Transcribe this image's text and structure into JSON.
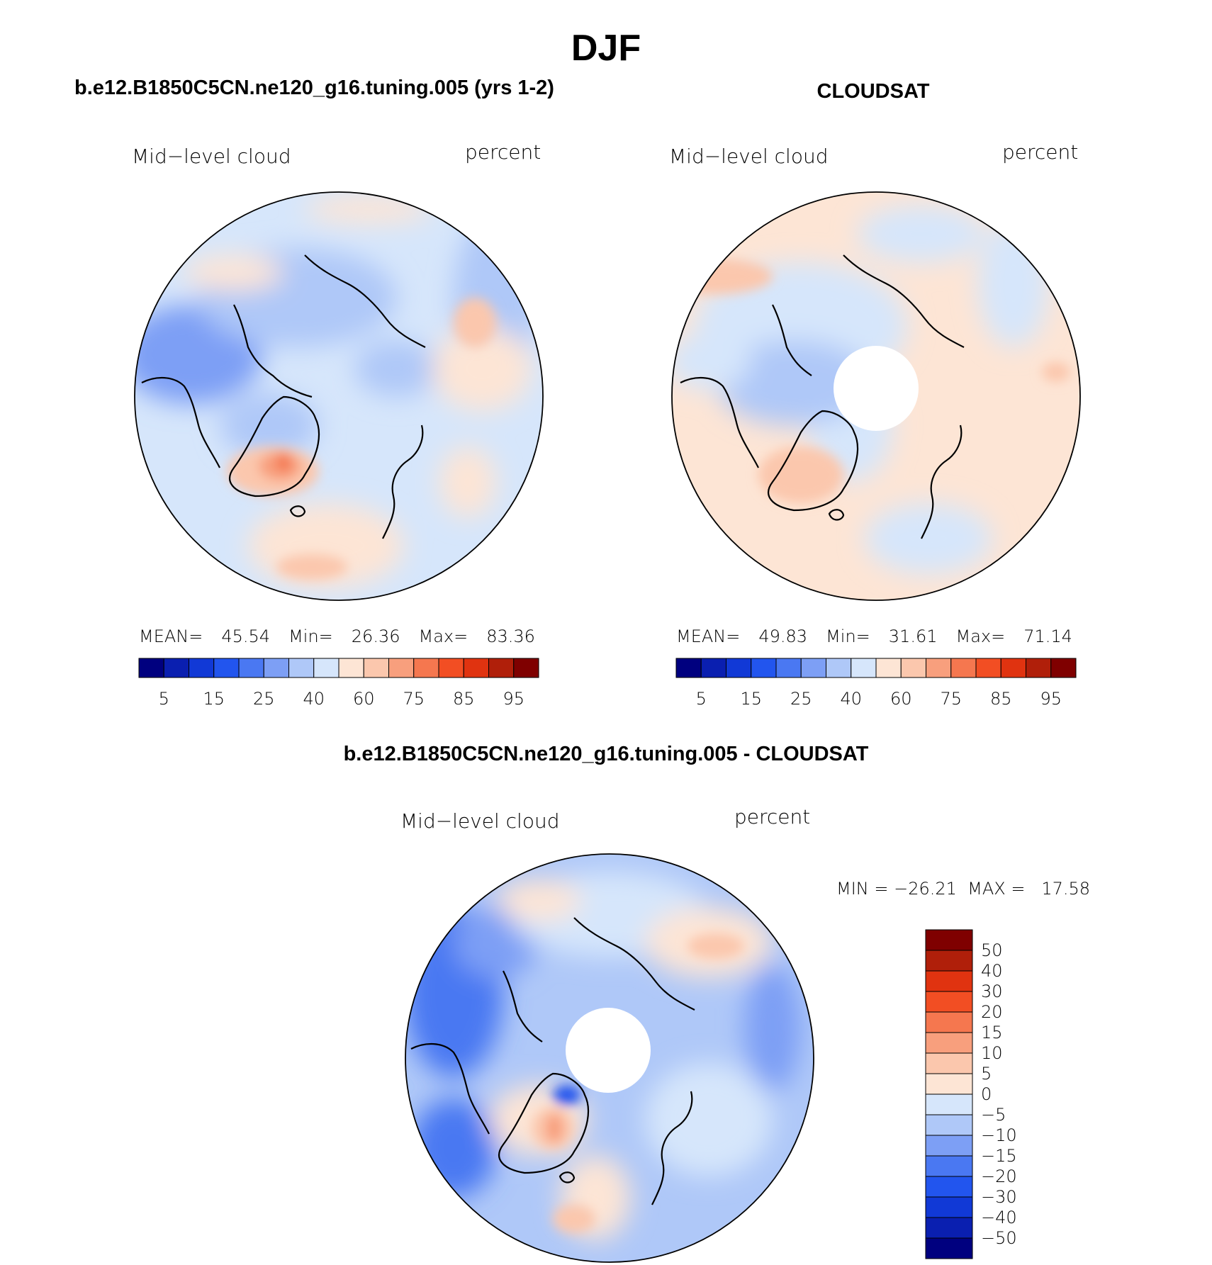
{
  "page": {
    "season": "DJF"
  },
  "panels": {
    "model": {
      "title": "b.e12.B1850C5CN.ne120_g16.tuning.005 (yrs 1-2)",
      "variable": "Mid−level cloud",
      "units": "percent",
      "stats": {
        "mean_label": "MEAN=",
        "mean": "45.54",
        "min_label": "Min=",
        "min": "26.36",
        "max_label": "Max=",
        "max": "83.36"
      }
    },
    "obs": {
      "title": "CLOUDSAT",
      "variable": "Mid−level cloud",
      "units": "percent",
      "stats": {
        "mean_label": "MEAN=",
        "mean": "49.83",
        "min_label": "Min=",
        "min": "31.61",
        "max_label": "Max=",
        "max": "71.14"
      }
    },
    "diff": {
      "title": "b.e12.B1850C5CN.ne120_g16.tuning.005 - CLOUDSAT",
      "variable": "Mid−level cloud",
      "units": "percent",
      "stats_text": "MIN = −26.21  MAX =   17.58"
    }
  },
  "colors": {
    "abs_scale": [
      "#00007f",
      "#0a1fb0",
      "#1139d6",
      "#2255ee",
      "#4a78f2",
      "#7d9ff5",
      "#afc8f8",
      "#d6e6fb",
      "#fde5d5",
      "#fbc7ad",
      "#f89f7d",
      "#f5774f",
      "#f24e23",
      "#e03310",
      "#b01f0a",
      "#7f0000"
    ],
    "diff_scale": [
      "#00007f",
      "#0a1fb0",
      "#1139d6",
      "#2255ee",
      "#4a78f2",
      "#7d9ff5",
      "#afc8f8",
      "#d6e6fb",
      "#fde5d5",
      "#fbc7ad",
      "#f89f7d",
      "#f5774f",
      "#f24e23",
      "#e03310",
      "#b01f0a",
      "#7f0000"
    ]
  },
  "chart_data": [
    {
      "type": "heatmap",
      "projection": "north-polar-stereographic",
      "title": "b.e12.B1850C5CN.ne120_g16.tuning.005 (yrs 1-2)",
      "variable": "Mid−level cloud",
      "units": "percent",
      "mean": 45.54,
      "min": 26.36,
      "max": 83.36,
      "colorbar_ticks": [
        "5",
        "15",
        "25",
        "40",
        "60",
        "75",
        "85",
        "95"
      ],
      "colorbar_orientation": "horizontal"
    },
    {
      "type": "heatmap",
      "projection": "north-polar-stereographic",
      "title": "CLOUDSAT",
      "variable": "Mid−level cloud",
      "units": "percent",
      "mean": 49.83,
      "min": 31.61,
      "max": 71.14,
      "colorbar_ticks": [
        "5",
        "15",
        "25",
        "40",
        "60",
        "75",
        "85",
        "95"
      ],
      "colorbar_orientation": "horizontal"
    },
    {
      "type": "heatmap",
      "projection": "north-polar-stereographic",
      "title": "b.e12.B1850C5CN.ne120_g16.tuning.005 - CLOUDSAT",
      "variable": "Mid−level cloud",
      "units": "percent",
      "min": -26.21,
      "max": 17.58,
      "colorbar_ticks": [
        "50",
        "40",
        "30",
        "20",
        "15",
        "10",
        "5",
        "0",
        "−5",
        "−10",
        "−15",
        "−20",
        "−30",
        "−40",
        "−50"
      ],
      "colorbar_orientation": "vertical"
    }
  ]
}
